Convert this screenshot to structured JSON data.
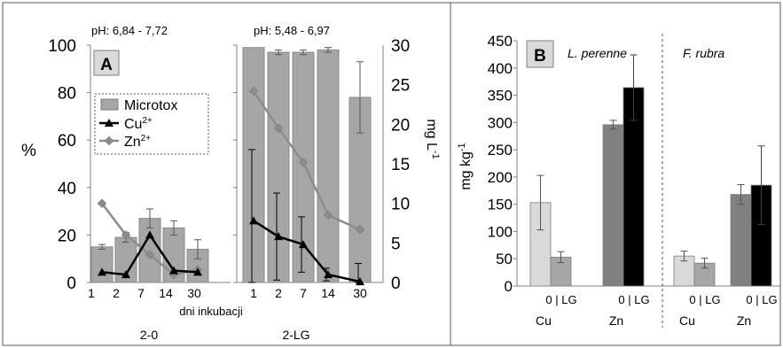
{
  "chart_data": [
    {
      "panel": "A",
      "type": "bar",
      "left_axis": {
        "label": "%",
        "ylim": [
          0,
          100
        ],
        "ticks": [
          0,
          20,
          40,
          60,
          80,
          100
        ]
      },
      "right_axis": {
        "label": "mg L-1",
        "ylim": [
          0,
          30
        ],
        "ticks": [
          0,
          5,
          10,
          15,
          20,
          25,
          30
        ]
      },
      "legend": [
        "Microtox",
        "Cu2+",
        "Zn2+"
      ],
      "xlabel": "dni inkubacji",
      "groups": [
        {
          "name": "2-0",
          "ph": "pH: 6,84 - 7,72",
          "categories": [
            "1",
            "2",
            "7",
            "14",
            "30"
          ],
          "series": [
            {
              "name": "Microtox",
              "values": [
                15,
                19,
                27,
                23,
                14
              ],
              "err": [
                1,
                2,
                4,
                3,
                4
              ]
            },
            {
              "name": "Cu2+",
              "values": [
                1.3,
                1.0,
                6.0,
                1.5,
                1.3
              ]
            },
            {
              "name": "Zn2+",
              "values": [
                10.0,
                6.0,
                3.5,
                1.0,
                1.6
              ]
            }
          ]
        },
        {
          "name": "2-LG",
          "ph": "pH: 5,48 - 6,97",
          "categories": [
            "1",
            "2",
            "7",
            "14",
            "30"
          ],
          "series": [
            {
              "name": "Microtox",
              "values": [
                99,
                97,
                97,
                98,
                78
              ],
              "err": [
                0,
                1,
                1,
                1,
                15
              ]
            },
            {
              "name": "Cu2+",
              "values": [
                7.8,
                5.8,
                4.8,
                1.0,
                0.1
              ],
              "err": [
                9,
                5.5,
                3.5,
                0.8,
                2.3
              ]
            },
            {
              "name": "Zn2+",
              "values": [
                24.2,
                19.5,
                15.2,
                8.5,
                6.7
              ]
            }
          ]
        }
      ]
    },
    {
      "panel": "B",
      "type": "bar",
      "ylabel": "mg kg-1",
      "ylim": [
        0,
        450
      ],
      "ticks": [
        0,
        50,
        100,
        150,
        200,
        250,
        300,
        350,
        400,
        450
      ],
      "species": [
        "L. perenne",
        "F. rubra"
      ],
      "pair_label": "0 | LG",
      "groups": [
        {
          "species": "L. perenne",
          "metal": "Cu",
          "values": [
            153,
            53
          ],
          "err": [
            50,
            10
          ],
          "colors": [
            "#d9d9d9",
            "#a6a6a6"
          ]
        },
        {
          "species": "L. perenne",
          "metal": "Zn",
          "values": [
            296,
            364
          ],
          "err": [
            8,
            60
          ],
          "colors": [
            "#808080",
            "#000000"
          ]
        },
        {
          "species": "F. rubra",
          "metal": "Cu",
          "values": [
            55,
            42
          ],
          "err": [
            9,
            9
          ],
          "colors": [
            "#d9d9d9",
            "#a6a6a6"
          ]
        },
        {
          "species": "F. rubra",
          "metal": "Zn",
          "values": [
            168,
            185
          ],
          "err": [
            18,
            72
          ],
          "colors": [
            "#808080",
            "#000000"
          ]
        }
      ]
    }
  ],
  "labels": {
    "panel_a": "A",
    "panel_b": "B",
    "pct": "%",
    "mgl_base": "mg L",
    "mgl_exp": "-1",
    "mgkg_base": "mg kg",
    "mgkg_exp": "-1",
    "ph1": "pH: 6,84 - 7,72",
    "ph2": "pH: 5,48 - 6,97",
    "legend_microtox": "Microtox",
    "legend_cu": "Cu",
    "legend_zn": "Zn",
    "legend_ion": "2+",
    "xlabel": "dni inkubacji",
    "group1": "2-0",
    "group2": "2-LG",
    "species1": "L. perenne",
    "species2": "F. rubra",
    "pair": "0 | LG",
    "cu": "Cu",
    "zn": "Zn"
  }
}
